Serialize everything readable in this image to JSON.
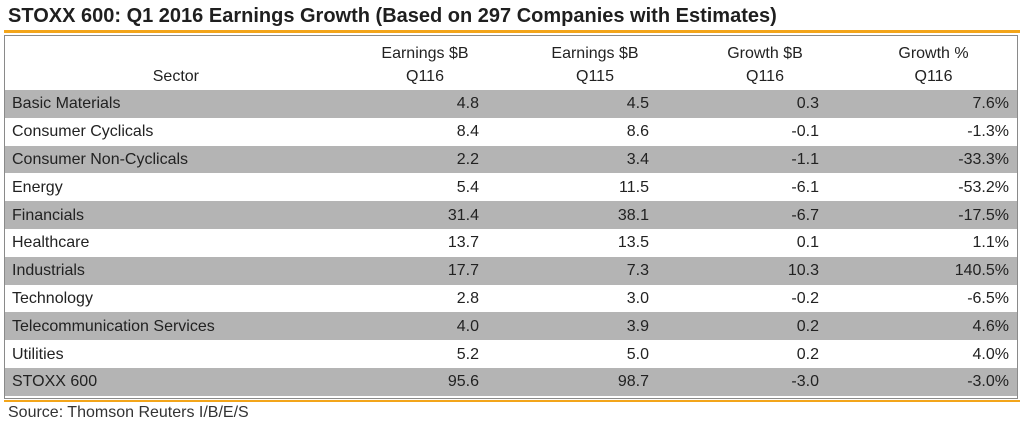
{
  "title": "STOXX 600: Q1 2016 Earnings Growth (Based on 297 Companies with Estimates)",
  "source": "Source: Thomson Reuters I/B/E/S",
  "colors": {
    "accent_rule": "#f3a51a",
    "row_shade": "#b4b4b4"
  },
  "chart_data": {
    "type": "table",
    "title": "STOXX 600: Q1 2016 Earnings Growth (Based on 297 Companies with Estimates)",
    "columns": [
      {
        "line1": "",
        "line2": "Sector"
      },
      {
        "line1": "Earnings $B",
        "line2": "Q116"
      },
      {
        "line1": "Earnings $B",
        "line2": "Q115"
      },
      {
        "line1": "Growth $B",
        "line2": "Q116"
      },
      {
        "line1": "Growth %",
        "line2": "Q116"
      }
    ],
    "rows": [
      [
        "Basic Materials",
        "4.8",
        "4.5",
        "0.3",
        "7.6%"
      ],
      [
        "Consumer Cyclicals",
        "8.4",
        "8.6",
        "-0.1",
        "-1.3%"
      ],
      [
        "Consumer Non-Cyclicals",
        "2.2",
        "3.4",
        "-1.1",
        "-33.3%"
      ],
      [
        "Energy",
        "5.4",
        "11.5",
        "-6.1",
        "-53.2%"
      ],
      [
        "Financials",
        "31.4",
        "38.1",
        "-6.7",
        "-17.5%"
      ],
      [
        "Healthcare",
        "13.7",
        "13.5",
        "0.1",
        "1.1%"
      ],
      [
        "Industrials",
        "17.7",
        "7.3",
        "10.3",
        "140.5%"
      ],
      [
        "Technology",
        "2.8",
        "3.0",
        "-0.2",
        "-6.5%"
      ],
      [
        "Telecommunication Services",
        "4.0",
        "3.9",
        "0.2",
        "4.6%"
      ],
      [
        "Utilities",
        "5.2",
        "5.0",
        "0.2",
        "4.0%"
      ]
    ],
    "total": [
      "STOXX 600",
      "95.6",
      "98.7",
      "-3.0",
      "-3.0%"
    ]
  }
}
